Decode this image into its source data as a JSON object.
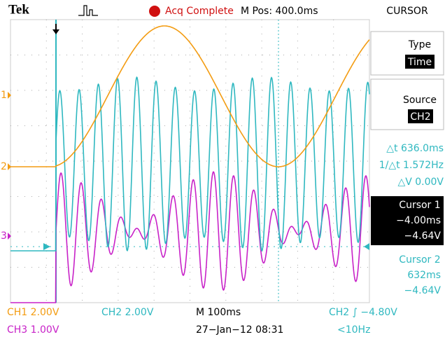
{
  "header": {
    "brand": "Tek",
    "status": "Acq Complete",
    "position": "M Pos: 400.0ms",
    "menu": "CURSOR"
  },
  "side_panel": {
    "type": {
      "label": "Type",
      "value": "Time"
    },
    "source": {
      "label": "Source",
      "value": "CH2"
    },
    "readout": {
      "delta_t": "△t 636.0ms",
      "inverse_delta_t": "1/△t 1.572Hz",
      "delta_v": "△V 0.00V"
    },
    "cursor1": {
      "label": "Cursor 1",
      "time": "−4.00ms",
      "volts": "−4.64V"
    },
    "cursor2": {
      "label": "Cursor 2",
      "time": "632ms",
      "volts": "−4.64V"
    }
  },
  "markers": [
    "1",
    "2",
    "3"
  ],
  "footer": {
    "ch1": "CH1  2.00V",
    "ch2": "CH2  2.00V",
    "timebase": "M 100ms",
    "trigger": "CH2 ∫ −4.80V",
    "ch3": "CH3  1.00V",
    "date": "27−Jan−12 08:31",
    "freq": "<10Hz"
  }
}
